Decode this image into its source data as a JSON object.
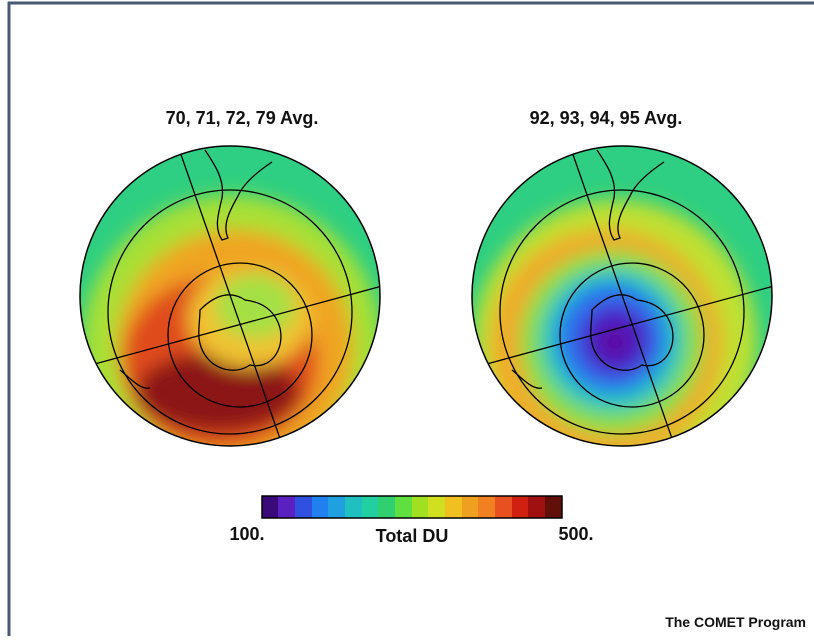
{
  "figure": {
    "maps": [
      {
        "title": "70, 71, 72, 79 Avg."
      },
      {
        "title": "92, 93, 94, 95 Avg."
      }
    ],
    "colorbar": {
      "min_label": "100.",
      "label": "Total DU",
      "max_label": "500."
    },
    "credit": "The COMET Program"
  }
}
